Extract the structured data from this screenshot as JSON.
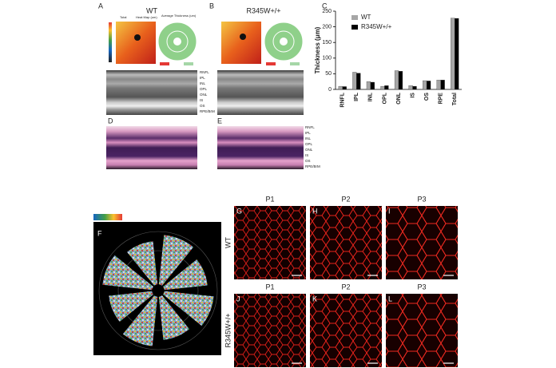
{
  "figure": {
    "panel_labels": [
      "A",
      "B",
      "C",
      "D",
      "E",
      "F",
      "G",
      "H",
      "I",
      "J",
      "K",
      "L"
    ],
    "genotypes": [
      "WT",
      "R345W+/+"
    ],
    "oct_headers": [
      "Total",
      "Heat Map (um)",
      "Average Thickness (um)"
    ],
    "layer_labels": [
      "RNFL",
      "IPL",
      "INL",
      "OPL",
      "ONL",
      "IS",
      "OS",
      "RPE/BrM"
    ],
    "ages": [
      "P1",
      "P2",
      "P3"
    ]
  },
  "chart_data": {
    "type": "bar",
    "y_label": "Thickness (μm)",
    "categories": [
      "RNFL",
      "IPL",
      "INL",
      "OPL",
      "ONL",
      "IS",
      "OS",
      "RPE",
      "Total"
    ],
    "series": [
      {
        "name": "WT",
        "color": "#a6a6a6",
        "values": [
          10,
          55,
          25,
          10,
          60,
          12,
          28,
          30,
          228
        ]
      },
      {
        "name": "R345W+/+",
        "color": "#000000",
        "values": [
          9,
          52,
          23,
          12,
          58,
          10,
          27,
          30,
          227
        ]
      }
    ],
    "ylim": [
      0,
      250
    ],
    "yticks": [
      0,
      50,
      100,
      150,
      200,
      250
    ],
    "legend": "top-left"
  }
}
